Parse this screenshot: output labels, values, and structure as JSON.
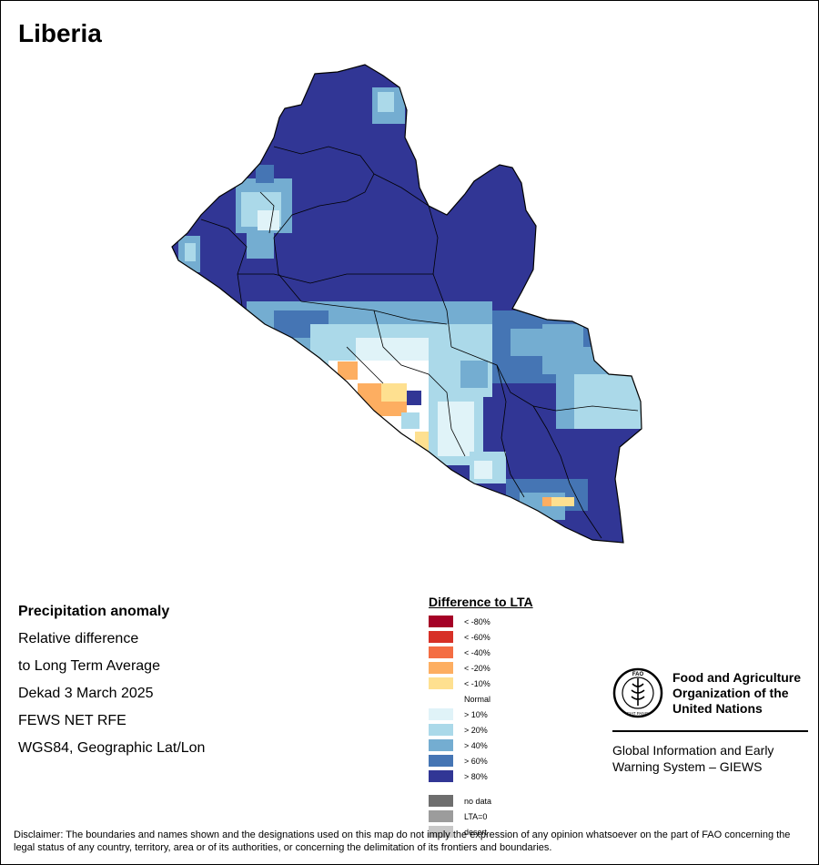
{
  "title": "Liberia",
  "info": {
    "heading": "Precipitation anomaly",
    "line1": "Relative difference",
    "line2": "to Long Term Average",
    "line3": "Dekad 3 March 2025",
    "line4": "FEWS NET RFE",
    "line5": "WGS84, Geographic Lat/Lon"
  },
  "legend": {
    "title": "Difference to LTA",
    "items": [
      {
        "label": "< -80%",
        "color": "#a50026"
      },
      {
        "label": "< -60%",
        "color": "#d73027"
      },
      {
        "label": "< -40%",
        "color": "#f46d43"
      },
      {
        "label": "< -20%",
        "color": "#fdae61"
      },
      {
        "label": "< -10%",
        "color": "#fee090"
      },
      {
        "label": "Normal",
        "color": ""
      },
      {
        "label": "> 10%",
        "color": "#e0f3f8"
      },
      {
        "label": "> 20%",
        "color": "#abd9e9"
      },
      {
        "label": "> 40%",
        "color": "#74add1"
      },
      {
        "label": "> 60%",
        "color": "#4575b4"
      },
      {
        "label": "> 80%",
        "color": "#313695"
      }
    ],
    "extra": [
      {
        "label": "no data",
        "color": "#6e6e6e"
      },
      {
        "label": "LTA=0",
        "color": "#9c9c9c"
      },
      {
        "label": "desert",
        "color": "#c8c8c8"
      }
    ]
  },
  "fao": {
    "logo_text": "FAO",
    "logo_motto": "FIAT PANIS",
    "name_line1": "Food and Agriculture",
    "name_line2": "Organization of the",
    "name_line3": "United Nations",
    "giews_line1": "Global Information and Early",
    "giews_line2": "Warning System – GIEWS"
  },
  "disclaimer": "Disclaimer: The boundaries and names shown and the designations used on this map do not imply the expression of any opinion whatsoever on the part of FAO concerning the legal status of any country, territory, area or of its authorities, or concerning the delimitation of its frontiers and boundaries."
}
